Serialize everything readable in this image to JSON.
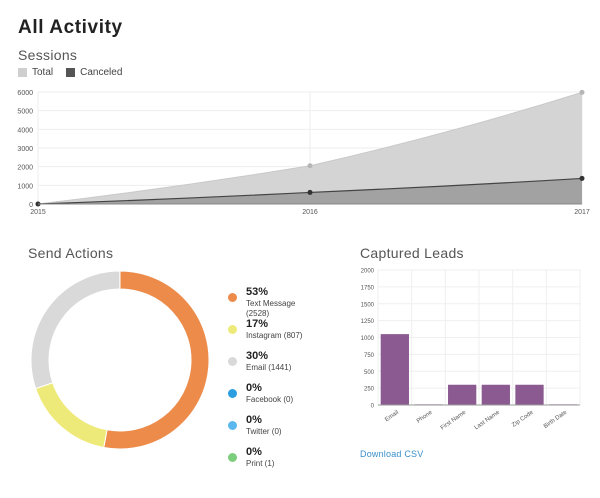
{
  "page": {
    "title": "All Activity"
  },
  "sessions": {
    "title": "Sessions",
    "legend": [
      {
        "label": "Total",
        "color": "#cfcfcf"
      },
      {
        "label": "Canceled",
        "color": "#555555"
      }
    ]
  },
  "send_actions": {
    "title": "Send Actions",
    "items": [
      {
        "pct": "53%",
        "label": "Text Message",
        "count": "(2528)",
        "color": "#ec8b4a"
      },
      {
        "pct": "17%",
        "label": "Instagram (807)",
        "count": "",
        "color": "#eeea7a"
      },
      {
        "pct": "30%",
        "label": "Email (1441)",
        "count": "",
        "color": "#d9d9d9"
      },
      {
        "pct": "0%",
        "label": "Facebook (0)",
        "count": "",
        "color": "#2b9ee0"
      },
      {
        "pct": "0%",
        "label": "Twitter (0)",
        "count": "",
        "color": "#5ab8ee"
      },
      {
        "pct": "0%",
        "label": "Print (1)",
        "count": "",
        "color": "#7ccd7c"
      }
    ]
  },
  "captured_leads": {
    "title": "Captured Leads",
    "download_label": "Download CSV"
  },
  "chart_data": [
    {
      "type": "area",
      "title": "Sessions",
      "categories": [
        "2015",
        "2016",
        "2017"
      ],
      "series": [
        {
          "name": "Total",
          "values": [
            0,
            2050,
            5980
          ],
          "color": "#cfcfcf"
        },
        {
          "name": "Canceled",
          "values": [
            0,
            620,
            1370
          ],
          "color": "#555555"
        }
      ],
      "ylim": [
        0,
        6000
      ],
      "yticks": [
        0,
        1000,
        2000,
        3000,
        4000,
        5000,
        6000
      ],
      "grid": true,
      "legend": "top-left"
    },
    {
      "type": "pie",
      "title": "Send Actions",
      "labels": [
        "Text Message",
        "Instagram",
        "Email",
        "Facebook",
        "Twitter",
        "Print"
      ],
      "values": [
        2528,
        807,
        1441,
        0,
        0,
        1
      ],
      "colors": [
        "#ec8b4a",
        "#eeea7a",
        "#d9d9d9",
        "#2b9ee0",
        "#5ab8ee",
        "#7ccd7c"
      ],
      "legend": "right"
    },
    {
      "type": "bar",
      "title": "Captured Leads",
      "categories": [
        "Email",
        "Phone",
        "First Name",
        "Last Name",
        "Zip Code",
        "Birth Date"
      ],
      "values": [
        1050,
        10,
        300,
        300,
        300,
        10
      ],
      "ylim": [
        0,
        2000
      ],
      "yticks": [
        0,
        250,
        500,
        750,
        1000,
        1250,
        1500,
        1750,
        2000
      ],
      "color": "#8a5a91",
      "grid": true
    }
  ]
}
